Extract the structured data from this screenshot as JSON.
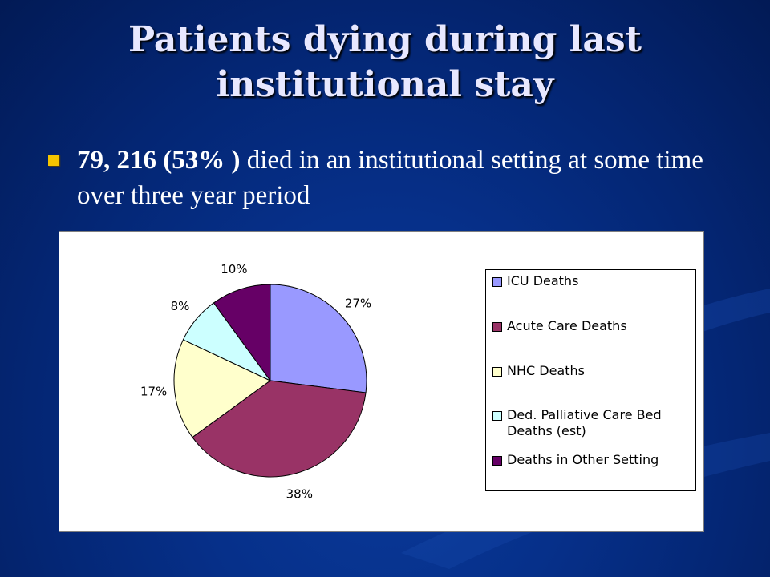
{
  "slide": {
    "title_line1": "Patients dying during last",
    "title_line2": "institutional stay",
    "bullet_bold": "79, 216 (53% )",
    "bullet_rest": " died in an institutional setting at some time over three year period"
  },
  "chart_data": {
    "type": "pie",
    "title": "",
    "legend_placement": "right",
    "slices": [
      {
        "label": "ICU Deaths",
        "value": 27,
        "display": "27%",
        "color": "#9999ff"
      },
      {
        "label": "Acute Care Deaths",
        "value": 38,
        "display": "38%",
        "color": "#993366"
      },
      {
        "label": "NHC Deaths",
        "value": 17,
        "display": "17%",
        "color": "#ffffcc"
      },
      {
        "label": "Ded. Palliative Care Bed Deaths (est)",
        "value": 8,
        "display": "8%",
        "color": "#ccffff"
      },
      {
        "label": "Deaths in Other Setting",
        "value": 10,
        "display": "10%",
        "color": "#660066"
      }
    ]
  }
}
